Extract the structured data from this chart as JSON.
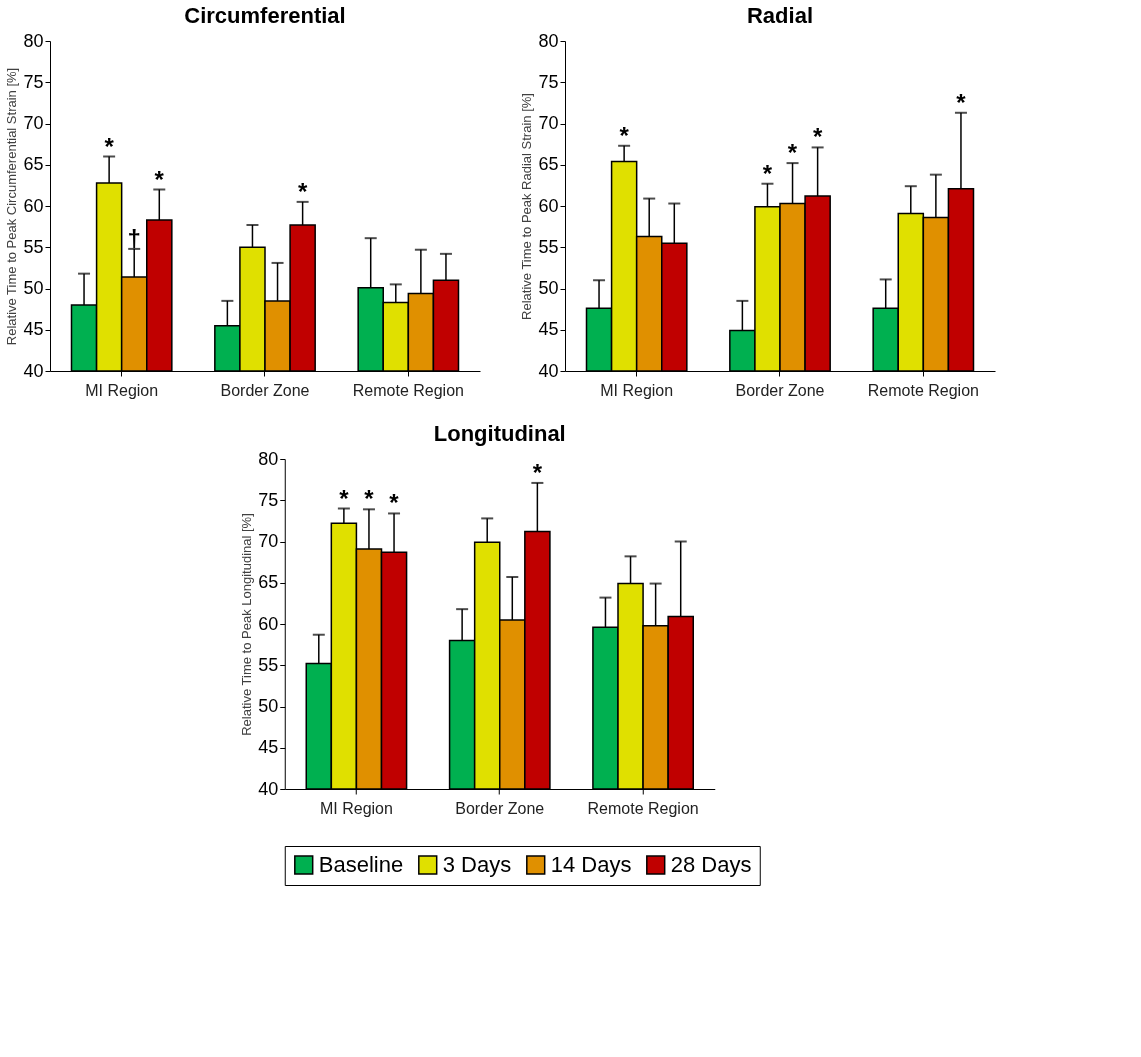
{
  "chart_data": [
    {
      "type": "bar",
      "title": "Circumferential",
      "ylabel": "Relative  Time to Peak Circumferential Strain [%]",
      "categories": [
        "MI Region",
        "Border Zone",
        "Remote Region"
      ],
      "ylim": [
        40,
        80
      ],
      "yticks": [
        40,
        45,
        50,
        55,
        60,
        65,
        70,
        75,
        80
      ],
      "legend": false,
      "series": [
        {
          "color": "#00b050",
          "values": [
            48.0,
            45.5,
            50.1
          ],
          "errors": [
            [
              48.0,
              51.8
            ],
            [
              45.5,
              48.5
            ],
            [
              50.1,
              56.1
            ]
          ]
        },
        {
          "color": "#e0e000",
          "values": [
            62.8,
            55.0,
            48.3
          ],
          "errors": [
            [
              62.8,
              66.0
            ],
            [
              55.0,
              57.7
            ],
            [
              48.3,
              50.5
            ]
          ],
          "value_labels": [
            "*",
            null,
            null
          ]
        },
        {
          "color": "#e09000",
          "values": [
            51.4,
            48.5,
            49.4
          ],
          "errors": [
            [
              51.4,
              54.8
            ],
            [
              48.5,
              53.1
            ],
            [
              49.4,
              54.7
            ]
          ],
          "value_labels": [
            "†",
            null,
            null
          ]
        },
        {
          "color": "#c00000",
          "values": [
            58.3,
            57.7,
            51.0
          ],
          "errors": [
            [
              58.3,
              62.0
            ],
            [
              57.7,
              60.5
            ],
            [
              51.0,
              54.2
            ]
          ],
          "value_labels": [
            "*",
            "*",
            null
          ]
        }
      ]
    },
    {
      "type": "bar",
      "title": "Radial",
      "ylabel": "Relative  Time to Peak Radial  Strain [%]",
      "categories": [
        "MI Region",
        "Border Zone",
        "Remote Region"
      ],
      "ylim": [
        40,
        80
      ],
      "yticks": [
        40,
        45,
        50,
        55,
        60,
        65,
        70,
        75,
        80
      ],
      "legend": false,
      "series": [
        {
          "color": "#00b050",
          "values": [
            47.6,
            44.9,
            47.6
          ],
          "errors": [
            [
              47.6,
              51.0
            ],
            [
              44.9,
              48.5
            ],
            [
              47.6,
              51.1
            ]
          ]
        },
        {
          "color": "#e0e000",
          "values": [
            65.4,
            59.9,
            59.1
          ],
          "errors": [
            [
              65.4,
              67.3
            ],
            [
              59.9,
              62.7
            ],
            [
              59.1,
              62.4
            ]
          ],
          "value_labels": [
            "*",
            "*",
            null
          ]
        },
        {
          "color": "#e09000",
          "values": [
            56.3,
            60.3,
            58.6
          ],
          "errors": [
            [
              56.3,
              60.9
            ],
            [
              60.3,
              65.2
            ],
            [
              58.6,
              63.8
            ]
          ],
          "value_labels": [
            null,
            "*",
            null
          ]
        },
        {
          "color": "#c00000",
          "values": [
            55.5,
            61.2,
            62.1
          ],
          "errors": [
            [
              55.5,
              60.3
            ],
            [
              61.2,
              67.1
            ],
            [
              62.1,
              71.3
            ]
          ],
          "value_labels": [
            null,
            "*",
            "*"
          ]
        }
      ]
    },
    {
      "type": "bar",
      "title": "Longitudinal",
      "ylabel": "Relative  Time to Peak Longitudinal  [%]",
      "categories": [
        "MI Region",
        "Border Zone",
        "Remote Region"
      ],
      "ylim": [
        40,
        80
      ],
      "yticks": [
        40,
        45,
        50,
        55,
        60,
        65,
        70,
        75,
        80
      ],
      "legend": "bottom",
      "series": [
        {
          "name": "Baseline",
          "color": "#00b050",
          "values": [
            55.2,
            58.0,
            59.6
          ],
          "errors": [
            [
              55.2,
              58.7
            ],
            [
              58.0,
              61.8
            ],
            [
              59.6,
              63.2
            ]
          ]
        },
        {
          "name": "3 Days",
          "color": "#e0e000",
          "values": [
            72.2,
            69.9,
            64.9
          ],
          "errors": [
            [
              72.2,
              74.0
            ],
            [
              69.9,
              72.8
            ],
            [
              64.9,
              68.2
            ]
          ],
          "value_labels": [
            "*",
            null,
            null
          ]
        },
        {
          "name": "14 Days",
          "color": "#e09000",
          "values": [
            69.1,
            60.5,
            59.8
          ],
          "errors": [
            [
              69.1,
              73.9
            ],
            [
              60.5,
              65.7
            ],
            [
              59.8,
              64.9
            ]
          ],
          "value_labels": [
            "*",
            null,
            null
          ]
        },
        {
          "name": "28 Days",
          "color": "#c00000",
          "values": [
            68.7,
            71.2,
            60.9
          ],
          "errors": [
            [
              68.7,
              73.4
            ],
            [
              71.2,
              77.1
            ],
            [
              60.9,
              70.0
            ]
          ],
          "value_labels": [
            "*",
            "*",
            null
          ]
        }
      ]
    }
  ]
}
